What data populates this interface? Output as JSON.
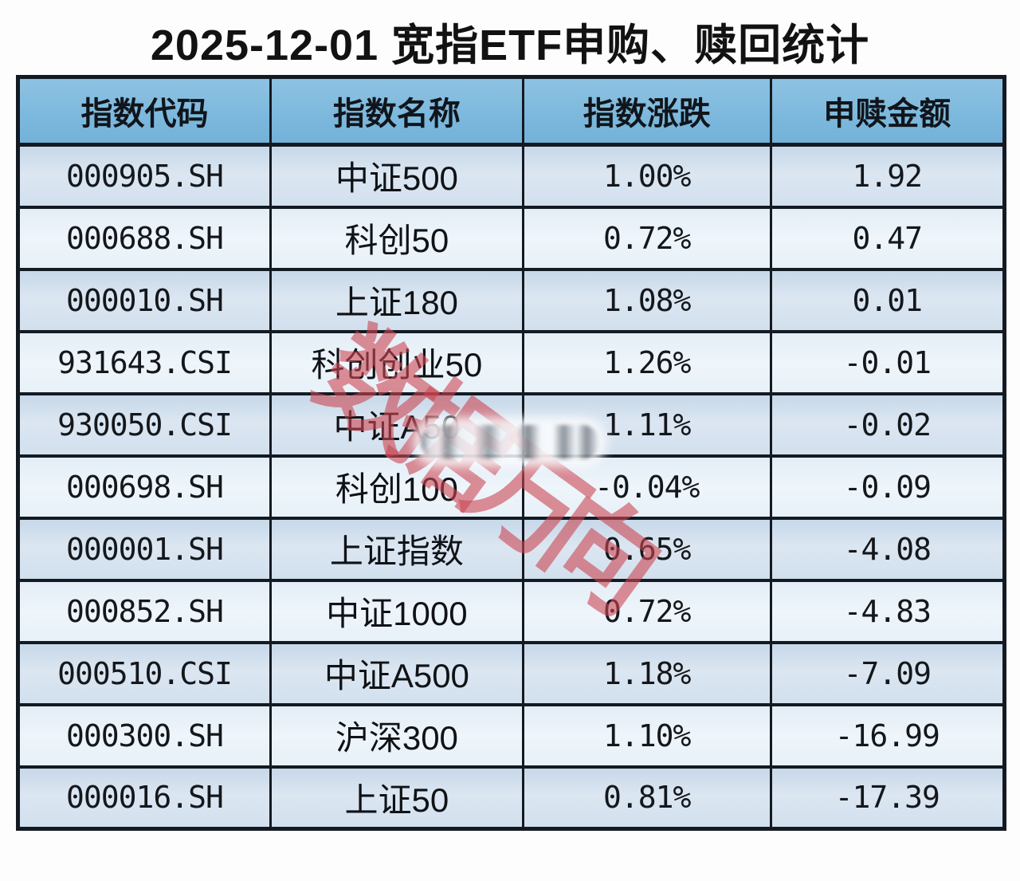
{
  "title": "2025-12-01 宽指ETF申购、赎回统计",
  "watermark": {
    "text": "数据万向"
  },
  "colors": {
    "header_bg": "#7db9dd",
    "row_blue": "#d0dfec",
    "row_light": "#e9f1f8",
    "border": "#141a22",
    "watermark_red": "#cc4652",
    "text": "#15181c"
  },
  "chart_data": {
    "type": "table",
    "title": "2025-12-01 宽指ETF申购、赎回统计",
    "columns": [
      "指数代码",
      "指数名称",
      "指数涨跌",
      "申赎金额"
    ],
    "rows": [
      {
        "code": "000905.SH",
        "name": "中证500",
        "change": "1.00%",
        "amount": "1.92"
      },
      {
        "code": "000688.SH",
        "name": "科创50",
        "change": "0.72%",
        "amount": "0.47"
      },
      {
        "code": "000010.SH",
        "name": "上证180",
        "change": "1.08%",
        "amount": "0.01"
      },
      {
        "code": "931643.CSI",
        "name": "科创创业50",
        "change": "1.26%",
        "amount": "-0.01"
      },
      {
        "code": "930050.CSI",
        "name": "中证A50",
        "change": "1.11%",
        "amount": "-0.02"
      },
      {
        "code": "000698.SH",
        "name": "科创100",
        "change": "-0.04%",
        "amount": "-0.09"
      },
      {
        "code": "000001.SH",
        "name": "上证指数",
        "change": "0.65%",
        "amount": "-4.08"
      },
      {
        "code": "000852.SH",
        "name": "中证1000",
        "change": "0.72%",
        "amount": "-4.83"
      },
      {
        "code": "000510.CSI",
        "name": "中证A500",
        "change": "1.18%",
        "amount": "-7.09"
      },
      {
        "code": "000300.SH",
        "name": "沪深300",
        "change": "1.10%",
        "amount": "-16.99"
      },
      {
        "code": "000016.SH",
        "name": "上证50",
        "change": "0.81%",
        "amount": "-17.39"
      }
    ]
  }
}
